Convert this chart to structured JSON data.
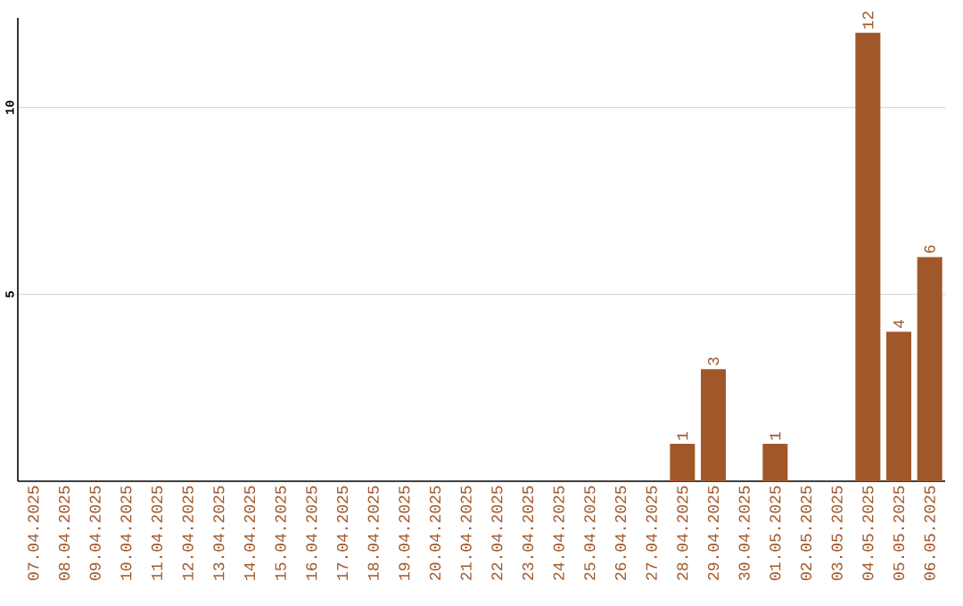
{
  "chart_data": {
    "type": "bar",
    "categories": [
      "07.04.2025",
      "08.04.2025",
      "09.04.2025",
      "10.04.2025",
      "11.04.2025",
      "12.04.2025",
      "13.04.2025",
      "14.04.2025",
      "15.04.2025",
      "16.04.2025",
      "17.04.2025",
      "18.04.2025",
      "19.04.2025",
      "20.04.2025",
      "21.04.2025",
      "22.04.2025",
      "23.04.2025",
      "24.04.2025",
      "25.04.2025",
      "26.04.2025",
      "27.04.2025",
      "28.04.2025",
      "29.04.2025",
      "30.04.2025",
      "01.05.2025",
      "02.05.2025",
      "03.05.2025",
      "04.05.2025",
      "05.05.2025",
      "06.05.2025"
    ],
    "values": [
      null,
      null,
      null,
      null,
      null,
      null,
      null,
      null,
      null,
      null,
      null,
      null,
      null,
      null,
      null,
      null,
      null,
      null,
      null,
      null,
      null,
      1,
      3,
      null,
      1,
      null,
      null,
      12,
      4,
      6
    ],
    "color": "#a0582a",
    "ylim": [
      0,
      12.4
    ],
    "yticks": [
      5,
      10
    ],
    "grid": "y",
    "data_labels": true
  }
}
